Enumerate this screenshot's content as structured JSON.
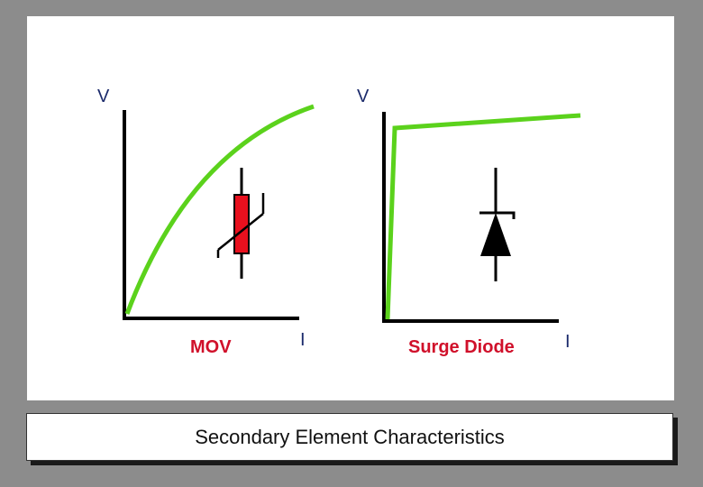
{
  "colors": {
    "frame": "#8c8c8c",
    "curve": "#5bd21c",
    "mov_body": "#e8101e",
    "caption": "#d0102a",
    "axis_label": "#1b2a6b"
  },
  "left_graph": {
    "y_axis_label": "V",
    "x_axis_label": "I",
    "caption": "MOV",
    "symbol": "varistor-symbol"
  },
  "right_graph": {
    "y_axis_label": "V",
    "x_axis_label": "I",
    "caption": "Surge Diode",
    "symbol": "diode-symbol"
  },
  "footer": {
    "title": "Secondary Element Characteristics"
  }
}
